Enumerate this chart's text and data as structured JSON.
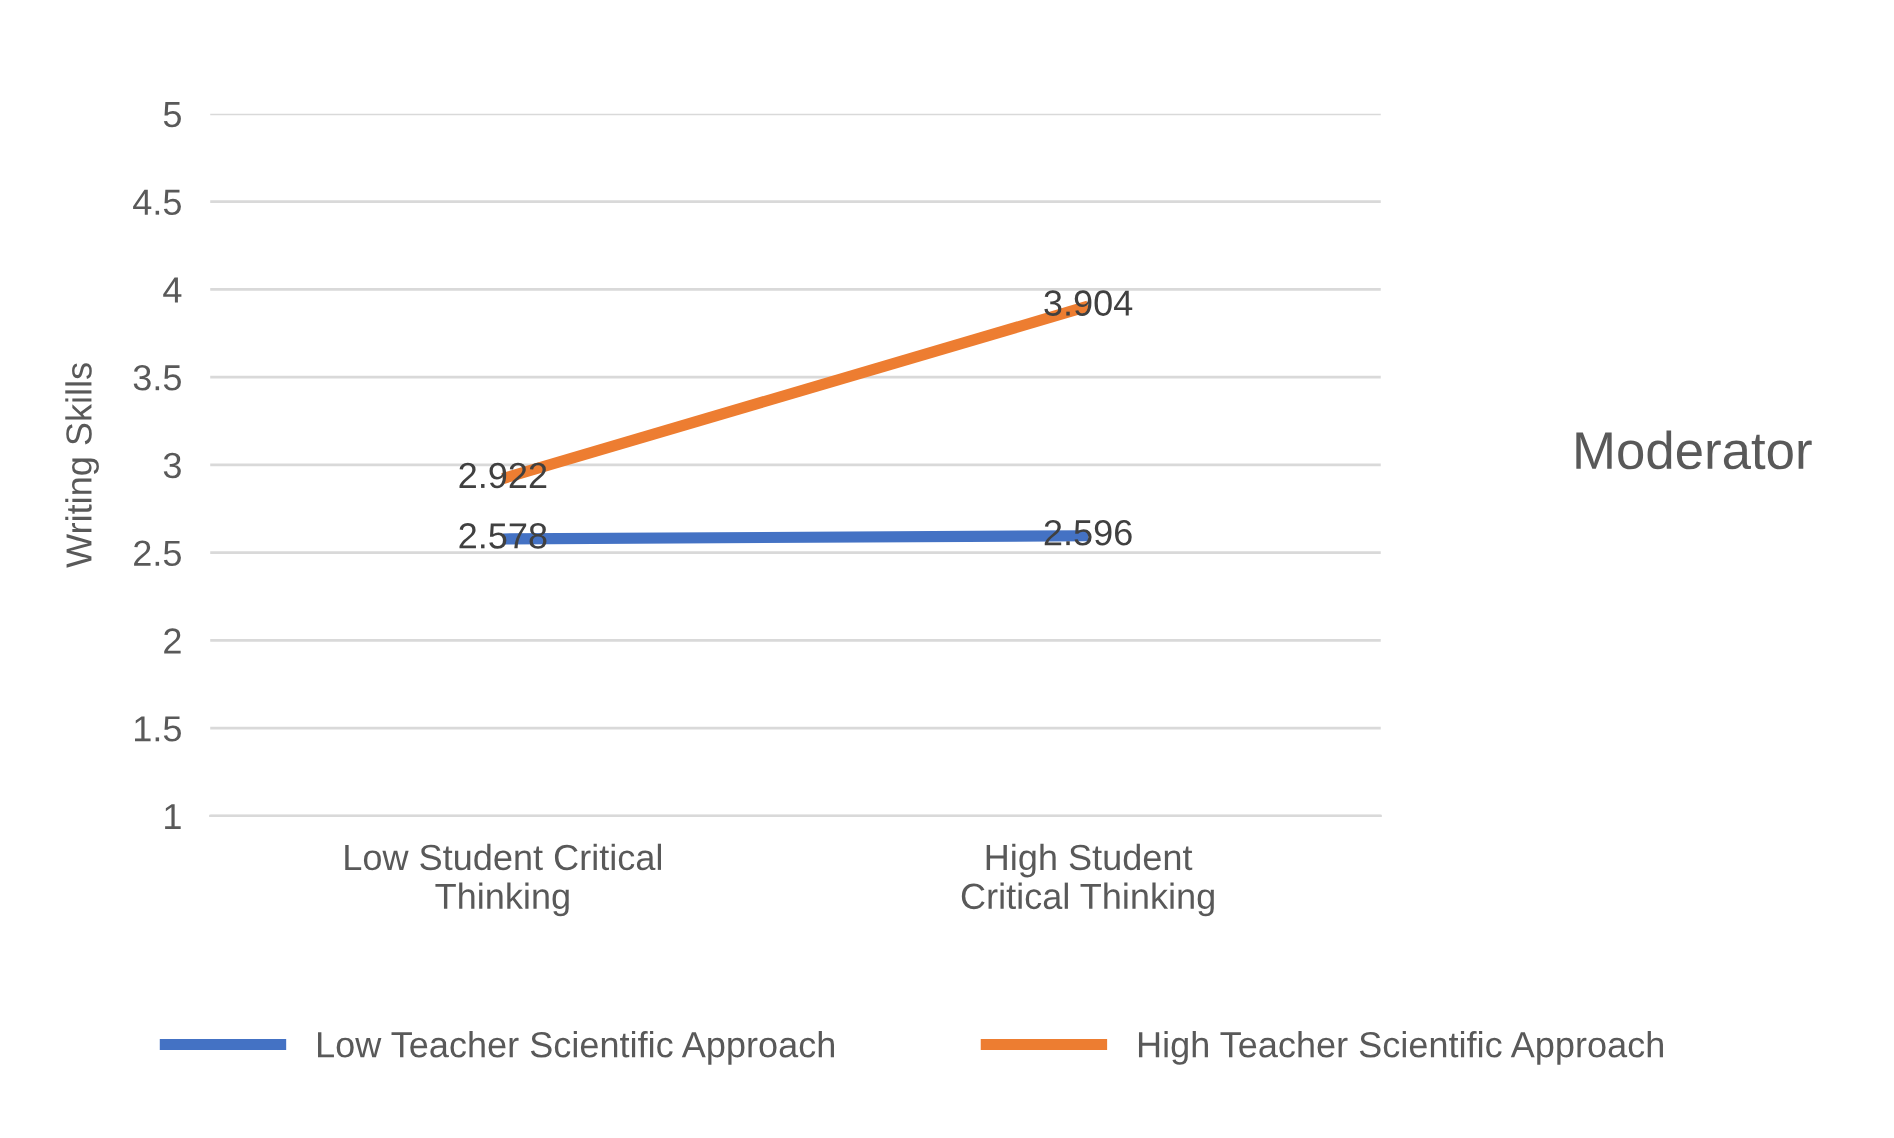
{
  "chart_data": {
    "type": "line",
    "ylabel": "Writing Skills",
    "categories": [
      "Low Student Critical Thinking",
      "High Student Critical Thinking"
    ],
    "series": [
      {
        "name": "Low Teacher Scientific Approach",
        "color": "#4472c4",
        "values": [
          2.578,
          2.596
        ]
      },
      {
        "name": "High Teacher Scientific Approach",
        "color": "#ed7d31",
        "values": [
          2.922,
          3.904
        ]
      }
    ],
    "ylim": [
      1,
      5
    ],
    "yticks": [
      1,
      1.5,
      2,
      2.5,
      3,
      3.5,
      4,
      4.5,
      5
    ],
    "grid": "y",
    "legend": "bottom",
    "data_labels": true,
    "marker": "none",
    "line_style": "solid",
    "annotations": [
      "Moderator"
    ]
  }
}
